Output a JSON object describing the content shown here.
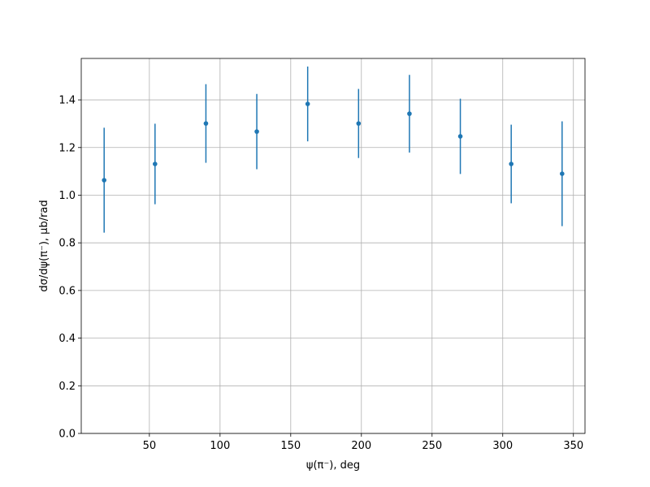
{
  "chart_data": {
    "type": "errorbar",
    "xlabel": "ψ(π⁻), deg",
    "ylabel": "dσ/dψ(π⁻), μb/rad",
    "x": [
      18,
      54,
      90,
      126,
      162,
      198,
      234,
      270,
      306,
      342
    ],
    "series": [
      {
        "color": "#1f77b4",
        "values": [
          1.063,
          1.131,
          1.301,
          1.267,
          1.383,
          1.301,
          1.342,
          1.247,
          1.131,
          1.09
        ],
        "errors": [
          0.22,
          0.169,
          0.165,
          0.158,
          0.157,
          0.145,
          0.163,
          0.158,
          0.165,
          0.22
        ]
      }
    ],
    "xlim": [
      1.8,
      358.2
    ],
    "ylim": [
      0,
      1.574
    ],
    "xticks": [
      50,
      100,
      150,
      200,
      250,
      300,
      350
    ],
    "yticks": [
      {
        "value": 0,
        "label": "0.0"
      },
      0.2,
      0.4,
      0.6,
      0.8,
      {
        "value": 1,
        "label": "1.0"
      },
      1.2,
      1.4
    ],
    "grid": true
  }
}
